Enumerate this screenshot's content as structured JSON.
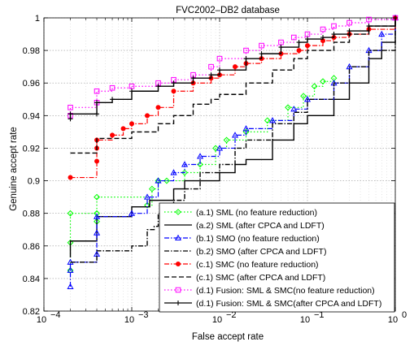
{
  "chart_data": {
    "type": "line",
    "title": "FVC2002–DB2 database",
    "xlabel": "False accept rate",
    "ylabel": "Genuine accept rate",
    "xscale": "log",
    "xlim": [
      0.0001,
      1
    ],
    "ylim": [
      0.82,
      1.0
    ],
    "xtick_labels": [
      "10",
      "10",
      "10",
      "10",
      "10"
    ],
    "xtick_exponents": [
      "−4",
      "−3",
      "−2",
      "−1",
      "0"
    ],
    "xticks": [
      0.0001,
      0.001,
      0.01,
      0.1,
      1
    ],
    "yticks": [
      0.82,
      0.84,
      0.86,
      0.88,
      0.9,
      0.92,
      0.94,
      0.96,
      0.98,
      1.0
    ],
    "ytick_labels": [
      "0.82",
      "0.84",
      "0.86",
      "0.88",
      "0.9",
      "0.92",
      "0.94",
      "0.96",
      "0.98",
      "1"
    ],
    "grid": true,
    "legend_position": "bottom-right",
    "series": [
      {
        "name": "(a.1) SML (no feature reduction)",
        "color": "#00ff00",
        "dash": "dotted",
        "marker": "diamond",
        "x": [
          0.0002,
          0.0002,
          0.0002,
          0.0004,
          0.0004,
          0.0004,
          0.0015,
          0.0017,
          0.002,
          0.0025,
          0.004,
          0.006,
          0.009,
          0.012,
          0.02,
          0.035,
          0.06,
          0.09,
          0.12,
          0.15,
          0.2
        ],
        "y": [
          0.845,
          0.862,
          0.88,
          0.875,
          0.88,
          0.89,
          0.885,
          0.895,
          0.9,
          0.9,
          0.905,
          0.91,
          0.92,
          0.925,
          0.93,
          0.937,
          0.945,
          0.952,
          0.958,
          0.961,
          0.963
        ]
      },
      {
        "name": "(a.2) SML (after CPCA and LDFT)",
        "color": "#000000",
        "dash": "solid",
        "marker": "none",
        "x": [
          0.0002,
          0.0002,
          0.0004,
          0.0004,
          0.001,
          0.001,
          0.0014,
          0.0016,
          0.002,
          0.003,
          0.004,
          0.006,
          0.01,
          0.015,
          0.02,
          0.04,
          0.07,
          0.1,
          0.2,
          0.3,
          0.5,
          0.7,
          1.0
        ],
        "y": [
          0.853,
          0.863,
          0.866,
          0.878,
          0.878,
          0.884,
          0.884,
          0.888,
          0.888,
          0.895,
          0.9,
          0.9,
          0.905,
          0.91,
          0.913,
          0.925,
          0.935,
          0.94,
          0.95,
          0.96,
          0.975,
          0.985,
          1.0
        ]
      },
      {
        "name": "(b.1) SMO (no feature reduction)",
        "color": "#0000ff",
        "dash": "dashdot",
        "marker": "triangle",
        "x": [
          0.0002,
          0.0002,
          0.0002,
          0.0004,
          0.0004,
          0.0004,
          0.001,
          0.0015,
          0.002,
          0.003,
          0.004,
          0.006,
          0.01,
          0.015,
          0.02,
          0.04,
          0.07,
          0.1,
          0.2,
          0.3,
          0.5,
          0.7,
          1.0
        ],
        "y": [
          0.835,
          0.845,
          0.85,
          0.855,
          0.868,
          0.878,
          0.88,
          0.89,
          0.9,
          0.905,
          0.91,
          0.915,
          0.92,
          0.928,
          0.932,
          0.937,
          0.944,
          0.95,
          0.96,
          0.97,
          0.98,
          0.99,
          1.0
        ]
      },
      {
        "name": "(b.2) SMO (after CPCA and LDFT)",
        "color": "#000000",
        "dash": "dashdot",
        "marker": "none",
        "x": [
          0.0002,
          0.0004,
          0.0004,
          0.001,
          0.0015,
          0.0018,
          0.002,
          0.003,
          0.004,
          0.006,
          0.01,
          0.015,
          0.02,
          0.04,
          0.07,
          0.1,
          0.2,
          0.3,
          0.5,
          1.0
        ],
        "y": [
          0.85,
          0.855,
          0.857,
          0.86,
          0.87,
          0.872,
          0.88,
          0.888,
          0.895,
          0.905,
          0.91,
          0.92,
          0.925,
          0.935,
          0.942,
          0.95,
          0.96,
          0.97,
          0.98,
          1.0
        ]
      },
      {
        "name": "(c.1) SMC (no feature reduction)",
        "color": "#ff0000",
        "dash": "dashdot",
        "marker": "circle",
        "x": [
          0.0002,
          0.0004,
          0.0004,
          0.0004,
          0.0006,
          0.0008,
          0.001,
          0.0015,
          0.002,
          0.003,
          0.005,
          0.008,
          0.01,
          0.015,
          0.02,
          0.03,
          0.05,
          0.08,
          0.1,
          0.15,
          0.2,
          0.3,
          0.5,
          1.0
        ],
        "y": [
          0.902,
          0.912,
          0.92,
          0.925,
          0.928,
          0.932,
          0.935,
          0.94,
          0.945,
          0.955,
          0.96,
          0.963,
          0.965,
          0.97,
          0.972,
          0.975,
          0.978,
          0.98,
          0.983,
          0.986,
          0.988,
          0.99,
          0.993,
          1.0
        ]
      },
      {
        "name": "(c.1) SMC (after CPCA and LDFT)",
        "color": "#000000",
        "dash": "dashed",
        "marker": "none",
        "x": [
          0.0002,
          0.0004,
          0.0004,
          0.001,
          0.002,
          0.003,
          0.005,
          0.008,
          0.01,
          0.02,
          0.04,
          0.07,
          0.1,
          0.2,
          0.3,
          0.5,
          1.0
        ],
        "y": [
          0.917,
          0.92,
          0.926,
          0.93,
          0.935,
          0.94,
          0.947,
          0.95,
          0.953,
          0.96,
          0.968,
          0.975,
          0.98,
          0.985,
          0.99,
          0.995,
          1.0
        ]
      },
      {
        "name": "(d.1) Fusion: SML & SMC(no feature reduction)",
        "color": "#ff00ff",
        "dash": "dotted",
        "marker": "square",
        "x": [
          0.0002,
          0.0002,
          0.0004,
          0.0004,
          0.0006,
          0.001,
          0.002,
          0.003,
          0.005,
          0.008,
          0.01,
          0.02,
          0.03,
          0.05,
          0.07,
          0.1,
          0.15,
          0.2,
          0.3,
          0.5,
          1.0
        ],
        "y": [
          0.94,
          0.945,
          0.948,
          0.955,
          0.957,
          0.958,
          0.96,
          0.962,
          0.965,
          0.97,
          0.975,
          0.98,
          0.983,
          0.985,
          0.988,
          0.99,
          0.993,
          0.995,
          0.997,
          0.999,
          1.0
        ]
      },
      {
        "name": "(d.1) Fusion: SML & SMC(after CPCA and LDFT)",
        "color": "#000000",
        "dash": "solid",
        "marker": "plus",
        "x": [
          0.0002,
          0.0002,
          0.0004,
          0.0004,
          0.0006,
          0.001,
          0.002,
          0.003,
          0.005,
          0.008,
          0.01,
          0.02,
          0.03,
          0.05,
          0.08,
          0.1,
          0.15,
          0.2,
          0.3,
          0.5,
          1.0
        ],
        "y": [
          0.938,
          0.941,
          0.941,
          0.948,
          0.95,
          0.955,
          0.958,
          0.96,
          0.963,
          0.965,
          0.968,
          0.975,
          0.978,
          0.982,
          0.985,
          0.987,
          0.988,
          0.99,
          0.992,
          0.995,
          1.0
        ]
      }
    ]
  }
}
